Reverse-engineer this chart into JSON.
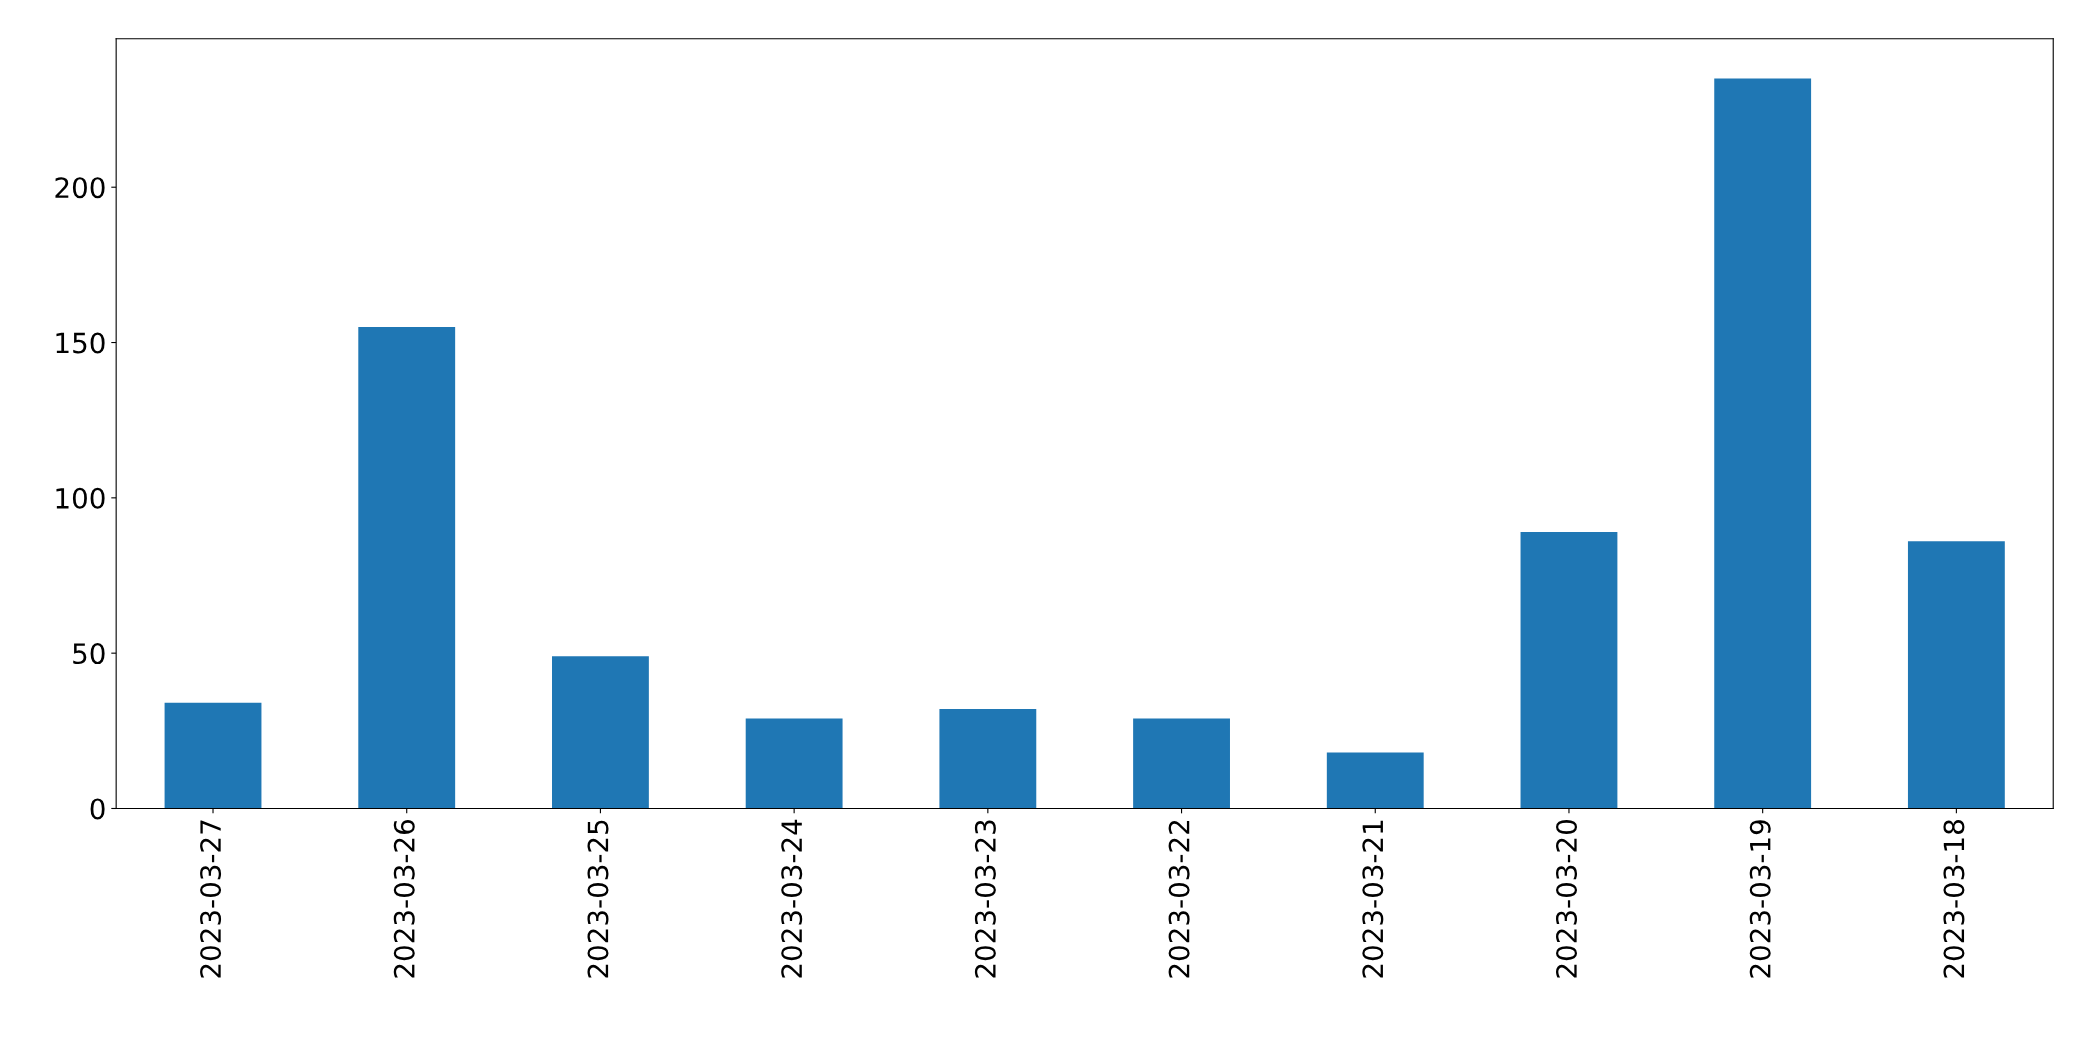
{
  "chart_data": {
    "type": "bar",
    "categories": [
      "2023-03-27",
      "2023-03-26",
      "2023-03-25",
      "2023-03-24",
      "2023-03-23",
      "2023-03-22",
      "2023-03-21",
      "2023-03-20",
      "2023-03-19",
      "2023-03-18"
    ],
    "values": [
      34,
      155,
      49,
      29,
      32,
      29,
      18,
      89,
      235,
      86
    ],
    "color": "#1f77b4",
    "ylim": [
      0,
      247.8
    ],
    "yticks": [
      0,
      50,
      100,
      150,
      200
    ],
    "grid": false,
    "legend": false
  }
}
